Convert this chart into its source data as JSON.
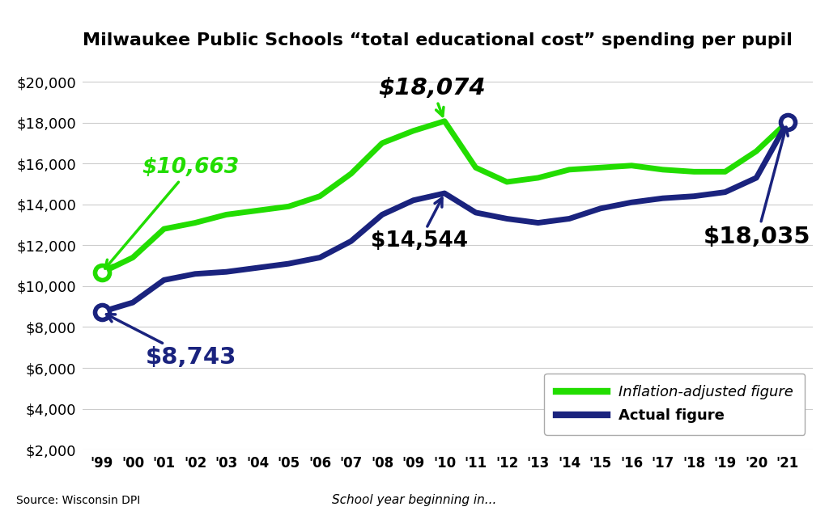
{
  "title": "Milwaukee Public Schools “total educational cost” spending per pupil",
  "years": [
    1999,
    2000,
    2001,
    2002,
    2003,
    2004,
    2005,
    2006,
    2007,
    2008,
    2009,
    2010,
    2011,
    2012,
    2013,
    2014,
    2015,
    2016,
    2017,
    2018,
    2019,
    2020,
    2021
  ],
  "year_labels": [
    "'99",
    "'00",
    "'01",
    "'02",
    "'03",
    "'04",
    "'05",
    "'06",
    "'07",
    "'08",
    "'09",
    "'10",
    "'11",
    "'12",
    "'13",
    "'14",
    "'15",
    "'16",
    "'17",
    "'18",
    "'19",
    "'20",
    "'21"
  ],
  "inflation_adjusted": [
    10663,
    11400,
    12800,
    13100,
    13500,
    13700,
    13900,
    14400,
    15500,
    17000,
    17600,
    18074,
    15800,
    15100,
    15300,
    15700,
    15800,
    15900,
    15700,
    15600,
    15600,
    16600,
    18035
  ],
  "actual": [
    8743,
    9200,
    10300,
    10600,
    10700,
    10900,
    11100,
    11400,
    12200,
    13500,
    14200,
    14544,
    13600,
    13300,
    13100,
    13300,
    13800,
    14100,
    14300,
    14400,
    14600,
    15300,
    18035
  ],
  "green_color": "#22DD00",
  "navy_color": "#1a237e",
  "background_color": "#ffffff",
  "ylim": [
    2000,
    21000
  ],
  "yticks": [
    2000,
    4000,
    6000,
    8000,
    10000,
    12000,
    14000,
    16000,
    18000,
    20000
  ],
  "source_text": "Source: Wisconsin DPI",
  "xlabel_text": "School year beginning in...",
  "legend_inflation": "Inflation-adjusted figure",
  "legend_actual": "Actual figure"
}
